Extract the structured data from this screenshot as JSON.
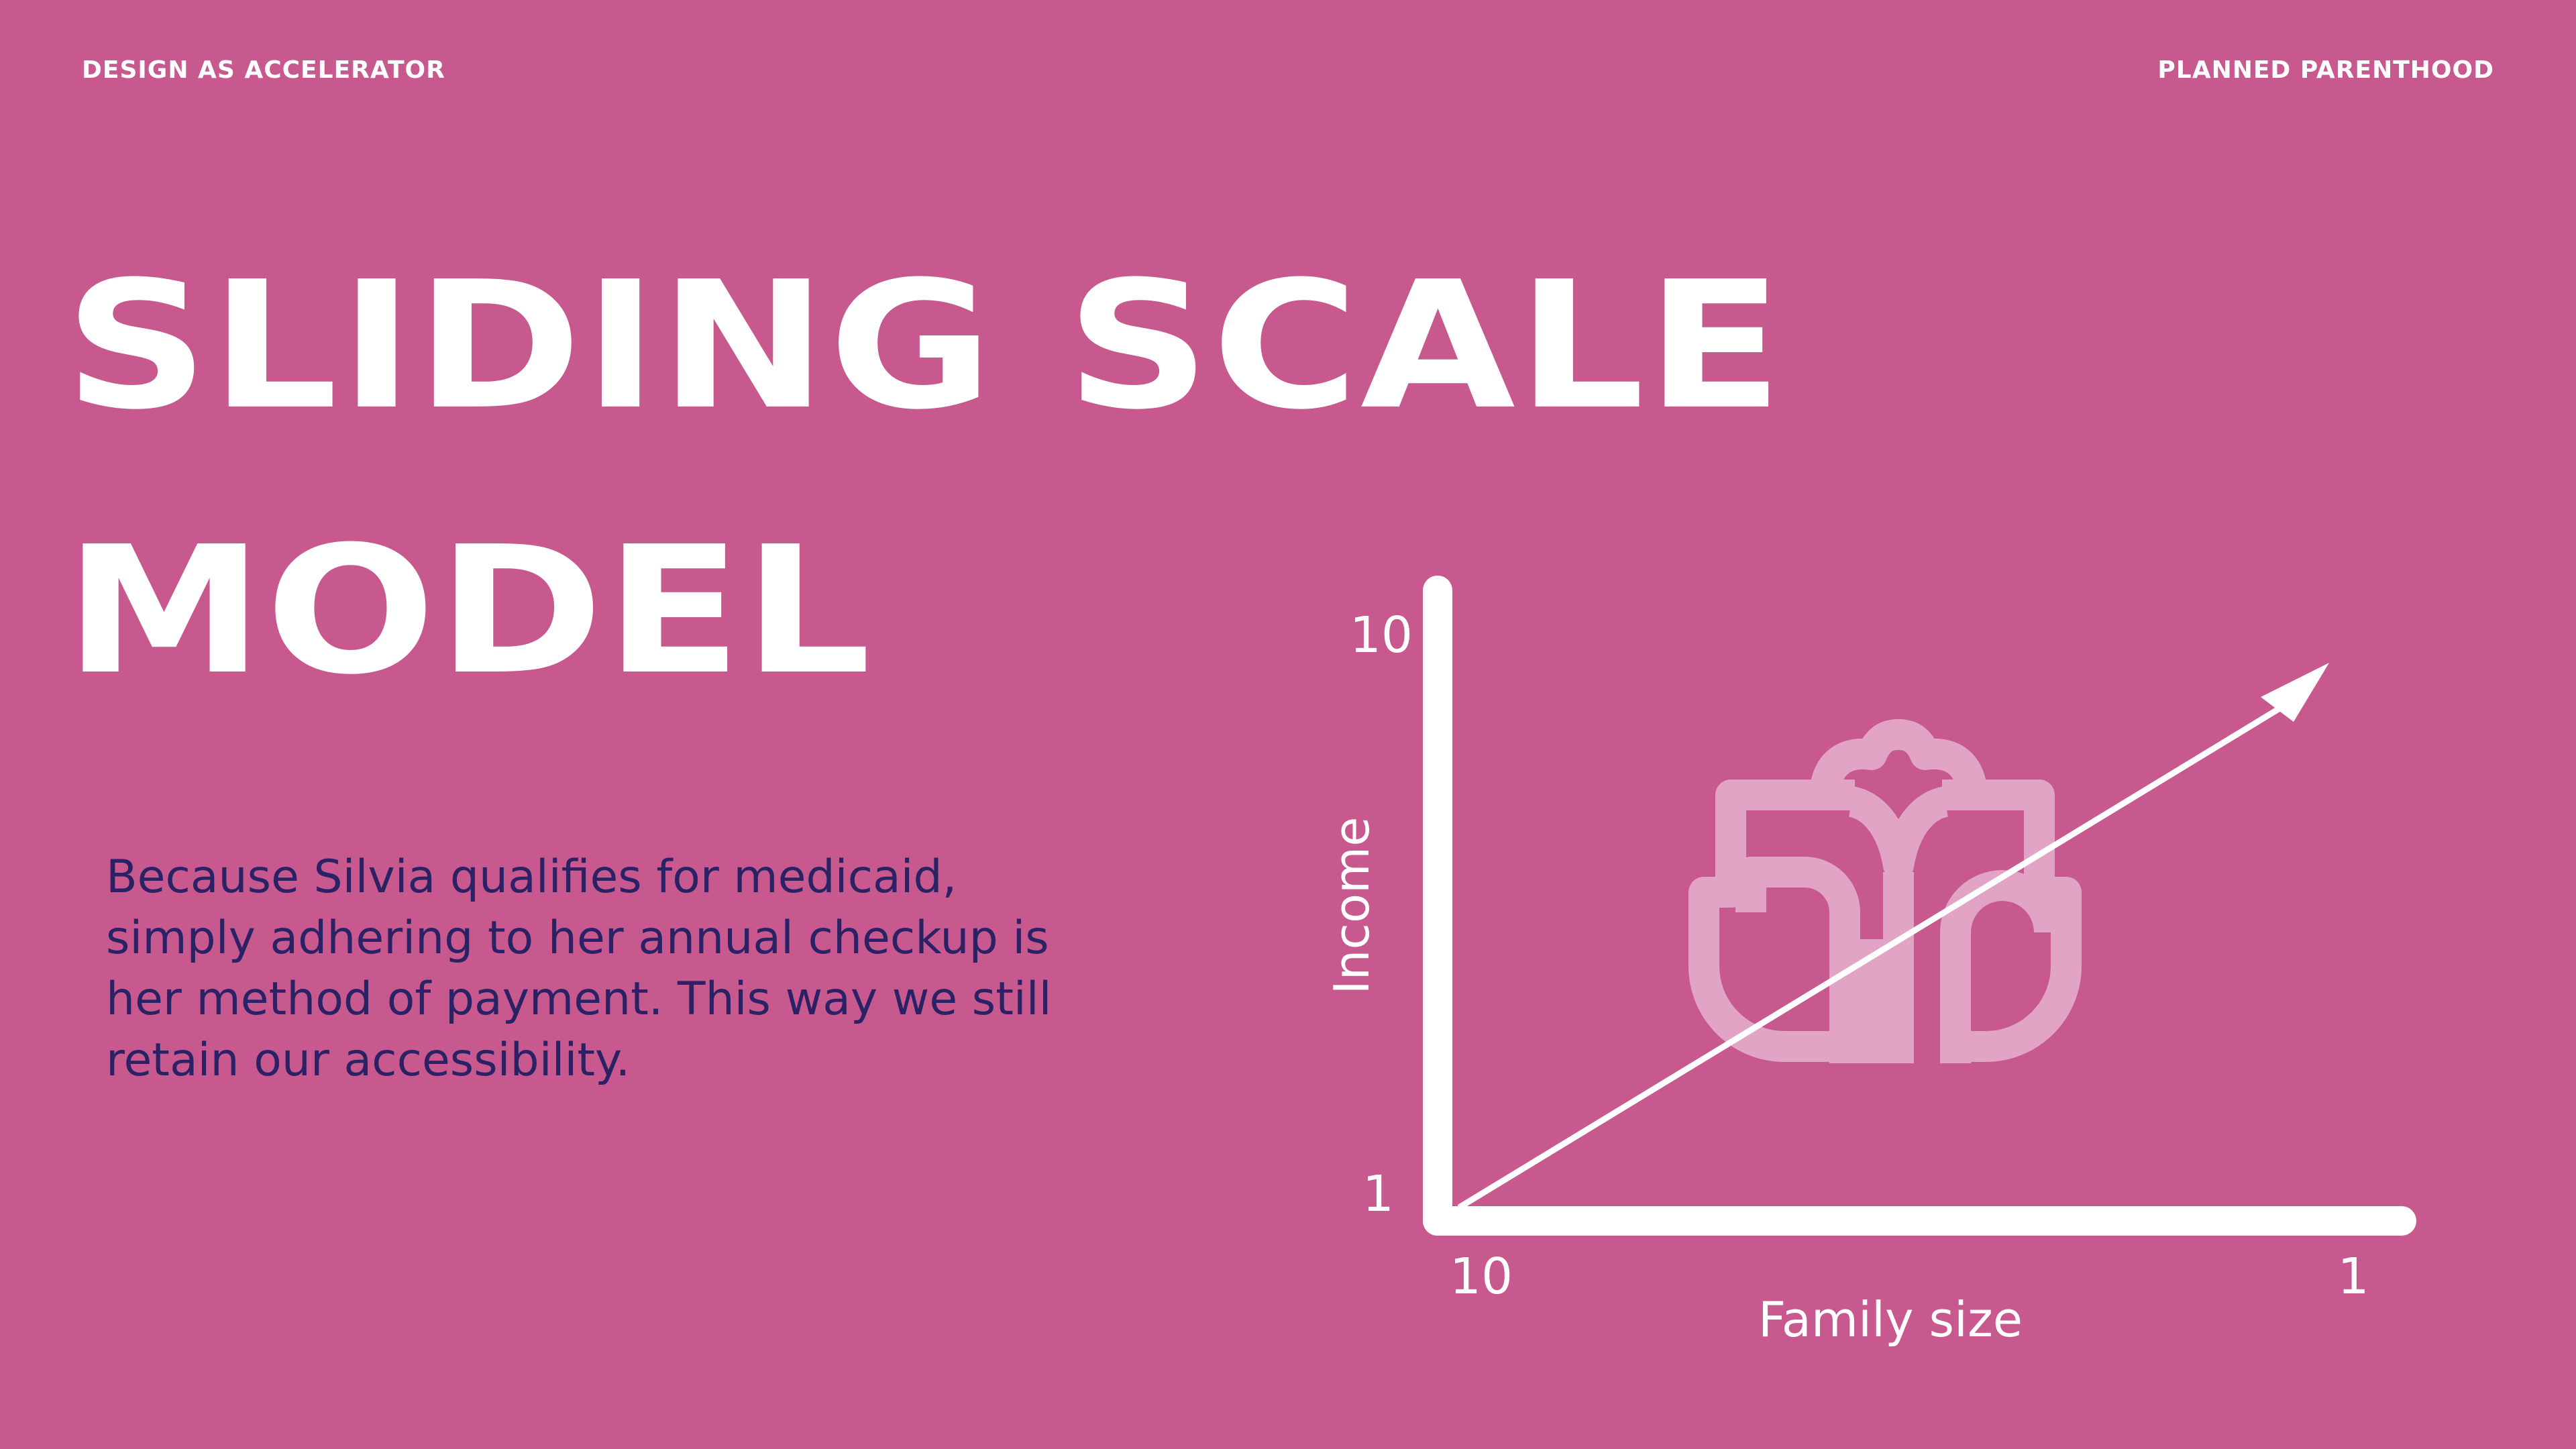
{
  "header": {
    "left_label": "DESIGN AS ACCELERATOR",
    "right_label": "PLANNED PARENTHOOD"
  },
  "title": {
    "line1": "SLIDING SCALE",
    "line2": "MODEL"
  },
  "body": {
    "paragraph": "Because Silvia qualifies for medicaid, simply adhering to her annual checkup is her method of payment. This way we still retain our accessibility."
  },
  "diagram": {
    "y_axis": {
      "label": "Income",
      "top_tick": "10",
      "bottom_tick": "1"
    },
    "x_axis": {
      "label": "Family size",
      "left_tick": "10",
      "right_tick": "1"
    },
    "watermark_icon": "planned-parenthood-logo-icon"
  },
  "colors": {
    "background": "#c7598f",
    "title": "#ffffff",
    "body_text": "#2b2266",
    "axes": "#ffffff",
    "logo_watermark": "#e2a4c5"
  }
}
